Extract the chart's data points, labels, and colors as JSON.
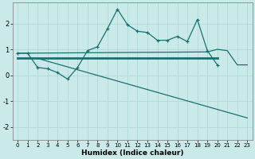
{
  "xlabel": "Humidex (Indice chaleur)",
  "bg_color": "#caeaea",
  "grid_color": "#b0d8d8",
  "line_color": "#1a7070",
  "xlim": [
    -0.5,
    23.5
  ],
  "ylim": [
    -2.5,
    2.8
  ],
  "yticks": [
    -2,
    -1,
    0,
    1,
    2
  ],
  "xticks": [
    0,
    1,
    2,
    3,
    4,
    5,
    6,
    7,
    8,
    9,
    10,
    11,
    12,
    13,
    14,
    15,
    16,
    17,
    18,
    19,
    20,
    21,
    22,
    23
  ],
  "line1_x": [
    0,
    1,
    2,
    3,
    4,
    5,
    6,
    7,
    8,
    9,
    10,
    11,
    12,
    13,
    14,
    15,
    16,
    17,
    18,
    19,
    20
  ],
  "line1_y": [
    0.85,
    0.85,
    0.3,
    0.25,
    0.1,
    -0.15,
    0.3,
    0.95,
    1.1,
    1.8,
    2.55,
    1.95,
    1.7,
    1.65,
    1.35,
    1.35,
    1.5,
    1.3,
    2.15,
    0.95,
    0.4
  ],
  "line2_x": [
    0,
    20
  ],
  "line2_y": [
    0.65,
    0.65
  ],
  "line3_x": [
    0,
    19,
    20,
    21,
    22,
    23
  ],
  "line3_y": [
    0.85,
    0.9,
    1.0,
    0.95,
    0.4,
    0.4
  ],
  "line4_x": [
    2,
    23
  ],
  "line4_y": [
    0.65,
    -1.65
  ],
  "line5_x": [
    19,
    20,
    21,
    22,
    23
  ],
  "line5_y": [
    0.95,
    0.4,
    null,
    -1.1,
    -1.65
  ]
}
